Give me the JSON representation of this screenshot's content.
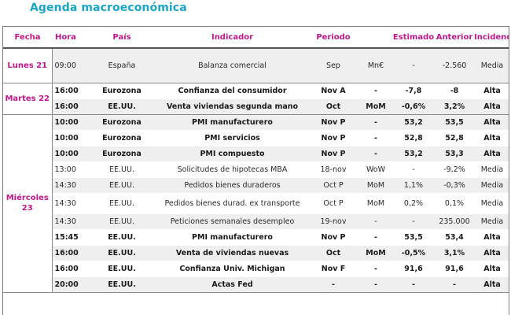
{
  "title": "Agenda macroeconómica",
  "headers": {
    "fecha": "Fecha",
    "hora": "Hora",
    "pais": "País",
    "indicador": "Indicador",
    "periodo": "Periodo",
    "unidad": "",
    "estimado": "Estimado",
    "anterior": "Anterior",
    "incidencia": "Incidenc."
  },
  "colors": {
    "title": "#1aa5c9",
    "accent": "#c0188c",
    "row_shade": "#efefef"
  },
  "days": [
    {
      "label": "Lunes 21",
      "rows": [
        {
          "hora": "09:00",
          "pais": "España",
          "indicador": "Balanza comercial",
          "periodo": "Sep",
          "unidad": "Mn€",
          "estimado": "-",
          "anterior": "-2.560",
          "incidencia": "Media"
        }
      ]
    },
    {
      "label": "Martes 22",
      "rows": [
        {
          "hora": "16:00",
          "pais": "Eurozona",
          "indicador": "Confianza del consumidor",
          "periodo": "Nov A",
          "unidad": "-",
          "estimado": "-7,8",
          "anterior": "-8",
          "incidencia": "Alta"
        },
        {
          "hora": "16:00",
          "pais": "EE.UU.",
          "indicador": "Venta viviendas segunda mano",
          "periodo": "Oct",
          "unidad": "MoM",
          "estimado": "-0,6%",
          "anterior": "3,2%",
          "incidencia": "Alta"
        }
      ]
    },
    {
      "label": "Miércoles 23",
      "rows": [
        {
          "hora": "10:00",
          "pais": "Eurozona",
          "indicador": "PMI manufacturero",
          "periodo": "Nov P",
          "unidad": "-",
          "estimado": "53,2",
          "anterior": "53,5",
          "incidencia": "Alta"
        },
        {
          "hora": "10:00",
          "pais": "Eurozona",
          "indicador": "PMI servicios",
          "periodo": "Nov P",
          "unidad": "-",
          "estimado": "52,8",
          "anterior": "52,8",
          "incidencia": "Alta"
        },
        {
          "hora": "10:00",
          "pais": "Eurozona",
          "indicador": "PMI compuesto",
          "periodo": "Nov P",
          "unidad": "-",
          "estimado": "53,2",
          "anterior": "53,3",
          "incidencia": "Alta"
        },
        {
          "hora": "13:00",
          "pais": "EE.UU.",
          "indicador": "Solicitudes de hipotecas MBA",
          "periodo": "18-nov",
          "unidad": "WoW",
          "estimado": "-",
          "anterior": "-9,2%",
          "incidencia": "Media"
        },
        {
          "hora": "14:30",
          "pais": "EE.UU.",
          "indicador": "Pedidos bienes duraderos",
          "periodo": "Oct P",
          "unidad": "MoM",
          "estimado": "1,1%",
          "anterior": "-0,3%",
          "incidencia": "Media"
        },
        {
          "hora": "14:30",
          "pais": "EE.UU.",
          "indicador": "Pedidos bienes durad. ex transporte",
          "periodo": "Oct P",
          "unidad": "MoM",
          "estimado": "0,2%",
          "anterior": "0,1%",
          "incidencia": "Media"
        },
        {
          "hora": "14:30",
          "pais": "EE.UU.",
          "indicador": "Peticiones semanales desempleo",
          "periodo": "19-nov",
          "unidad": "-",
          "estimado": "-",
          "anterior": "235.000",
          "incidencia": "Media"
        },
        {
          "hora": "15:45",
          "pais": "EE.UU.",
          "indicador": "PMI manufacturero",
          "periodo": "Nov P",
          "unidad": "-",
          "estimado": "53,5",
          "anterior": "53,4",
          "incidencia": "Alta"
        },
        {
          "hora": "16:00",
          "pais": "EE.UU.",
          "indicador": "Venta de viviendas nuevas",
          "periodo": "Oct",
          "unidad": "MoM",
          "estimado": "-0,5%",
          "anterior": "3,1%",
          "incidencia": "Alta"
        },
        {
          "hora": "16:00",
          "pais": "EE.UU.",
          "indicador": "Confianza Univ. Michigan",
          "periodo": "Nov F",
          "unidad": "-",
          "estimado": "91,6",
          "anterior": "91,6",
          "incidencia": "Alta"
        },
        {
          "hora": "20:00",
          "pais": "EE.UU.",
          "indicador": "Actas Fed",
          "periodo": "-",
          "unidad": "-",
          "estimado": "-",
          "anterior": "-",
          "incidencia": "Alta"
        }
      ]
    }
  ]
}
